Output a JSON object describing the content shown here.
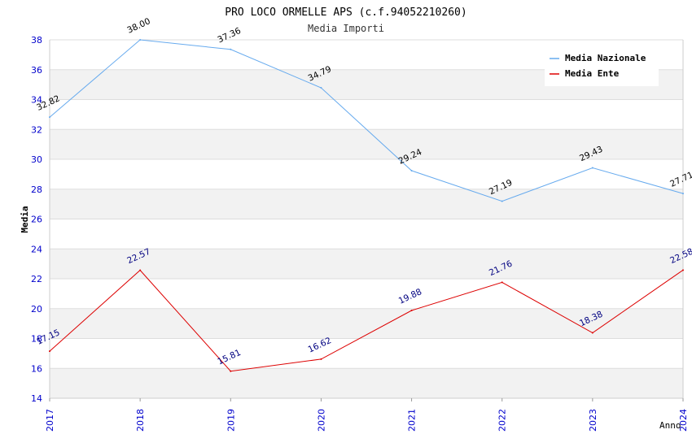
{
  "chart_data": {
    "type": "line",
    "title": "PRO LOCO ORMELLE APS (c.f.94052210260)",
    "subtitle": "Media Importi",
    "xlabel": "Anno",
    "ylabel": "Media",
    "categories": [
      "2017",
      "2018",
      "2019",
      "2020",
      "2021",
      "2022",
      "2023",
      "2024"
    ],
    "ylim": [
      14,
      38
    ],
    "yticks": [
      14,
      16,
      18,
      20,
      22,
      24,
      26,
      28,
      30,
      32,
      34,
      36,
      38
    ],
    "grid": true,
    "legend_position": "top-right",
    "series": [
      {
        "name": "Media Nazionale",
        "color": "#66aaee",
        "label_color": "#000000",
        "values": [
          32.82,
          38.0,
          37.36,
          34.79,
          29.24,
          27.19,
          29.43,
          27.71
        ],
        "labels": [
          "32.82",
          "38.00",
          "37.36",
          "34.79",
          "29.24",
          "27.19",
          "29.43",
          "27.71"
        ]
      },
      {
        "name": "Media Ente",
        "color": "#dd0000",
        "label_color": "#000080",
        "values": [
          17.15,
          22.57,
          15.81,
          16.62,
          19.88,
          21.76,
          18.38,
          22.58
        ],
        "labels": [
          "17.15",
          "22.57",
          "15.81",
          "16.62",
          "19.88",
          "21.76",
          "18.38",
          "22.58"
        ]
      }
    ]
  },
  "colors": {
    "axis_label": "#0000cc",
    "band": "#f2f2f2",
    "grid": "#dddddd"
  }
}
